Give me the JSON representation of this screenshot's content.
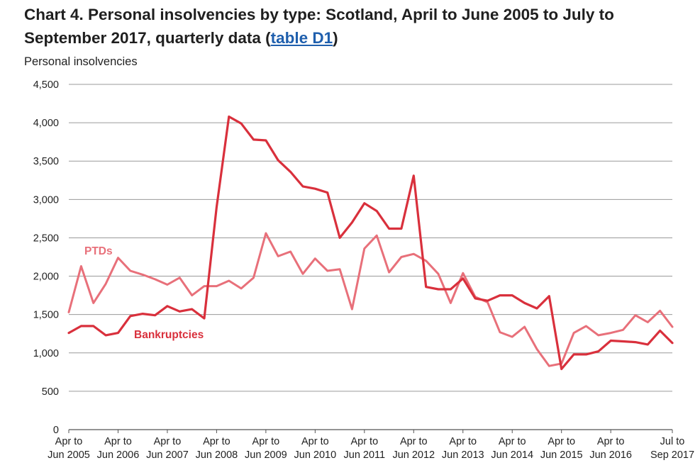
{
  "title": {
    "main": "Chart 4. Personal insolvencies by type: Scotland, April to June 2005 to July to September 2017, quarterly data (",
    "link": "table D1",
    "close": ")"
  },
  "chart_data": {
    "type": "line",
    "ylabel": "Personal insolvencies",
    "xlabel": "",
    "ylim": [
      0,
      4500
    ],
    "yticks": [
      0,
      500,
      1000,
      1500,
      2000,
      2500,
      3000,
      3500,
      4000,
      4500
    ],
    "ytick_labels": [
      "0",
      "500",
      "1,000",
      "1,500",
      "2,000",
      "2,500",
      "3,000",
      "3,500",
      "4,000",
      "4,500"
    ],
    "grid": true,
    "xticks": [
      {
        "index": 0,
        "line1": "Apr to",
        "line2": "Jun 2005"
      },
      {
        "index": 4,
        "line1": "Apr to",
        "line2": "Jun 2006"
      },
      {
        "index": 8,
        "line1": "Apr to",
        "line2": "Jun 2007"
      },
      {
        "index": 12,
        "line1": "Apr to",
        "line2": "Jun 2008"
      },
      {
        "index": 16,
        "line1": "Apr to",
        "line2": "Jun 2009"
      },
      {
        "index": 20,
        "line1": "Apr to",
        "line2": "Jun 2010"
      },
      {
        "index": 24,
        "line1": "Apr to",
        "line2": "Jun 2011"
      },
      {
        "index": 28,
        "line1": "Apr to",
        "line2": "Jun 2012"
      },
      {
        "index": 32,
        "line1": "Apr to",
        "line2": "Jun 2013"
      },
      {
        "index": 36,
        "line1": "Apr to",
        "line2": "Jun 2014"
      },
      {
        "index": 40,
        "line1": "Apr to",
        "line2": "Jun 2015"
      },
      {
        "index": 44,
        "line1": "Apr to",
        "line2": "Jun 2016"
      },
      {
        "index": 49,
        "line1": "Jul to",
        "line2": "Sep 2017"
      }
    ],
    "series": [
      {
        "name": "PTDs",
        "color": "#e8707a",
        "values": [
          1530,
          2130,
          1650,
          1900,
          2240,
          2070,
          2020,
          1960,
          1890,
          1980,
          1750,
          1870,
          1870,
          1940,
          1840,
          1980,
          2560,
          2260,
          2320,
          2030,
          2230,
          2070,
          2090,
          1570,
          2360,
          2530,
          2050,
          2250,
          2290,
          2200,
          2030,
          1650,
          2040,
          1730,
          1660,
          1270,
          1210,
          1340,
          1050,
          830,
          860,
          1260,
          1350,
          1230,
          1260,
          1300,
          1490,
          1400,
          1550,
          1340
        ]
      },
      {
        "name": "Bankruptcies",
        "color": "#d9303c",
        "values": [
          1260,
          1350,
          1350,
          1230,
          1260,
          1480,
          1510,
          1490,
          1610,
          1540,
          1570,
          1450,
          2900,
          4080,
          3990,
          3780,
          3770,
          3510,
          3360,
          3170,
          3140,
          3090,
          2500,
          2700,
          2950,
          2850,
          2620,
          2620,
          3310,
          1860,
          1830,
          1830,
          1970,
          1710,
          1680,
          1750,
          1750,
          1650,
          1580,
          1740,
          790,
          980,
          980,
          1020,
          1160,
          1150,
          1140,
          1110,
          1290,
          1130
        ]
      }
    ],
    "annotations": [
      {
        "text": "PTDs",
        "series": "PTDs"
      },
      {
        "text": "Bankruptcies",
        "series": "Bankruptcies"
      }
    ]
  }
}
